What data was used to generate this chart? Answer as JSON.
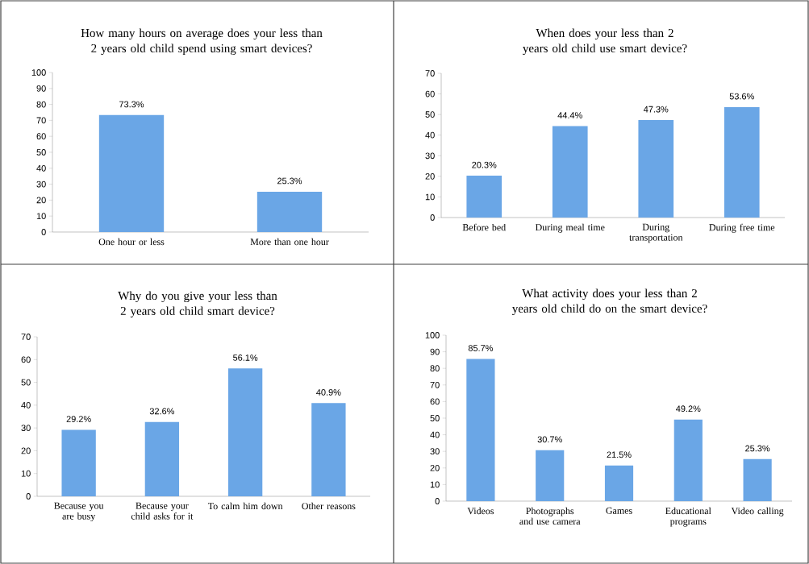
{
  "chart_data": [
    {
      "type": "bar",
      "title": "How many hours on average does your less than 2 years old child spend using smart devices?",
      "categories": [
        "One hour or less",
        "More than one hour"
      ],
      "values": [
        73.3,
        25.3
      ],
      "value_labels": [
        "73.3%",
        "25.3%"
      ],
      "color": "#6aa6e6",
      "ylim": [
        0,
        100
      ],
      "yticks": [
        0,
        10,
        20,
        30,
        40,
        50,
        60,
        70,
        80,
        90,
        100
      ]
    },
    {
      "type": "bar",
      "title": "When does your less than 2 years old child use smart device?",
      "categories": [
        "Before bed",
        "During meal time",
        "During transportation",
        "During free time"
      ],
      "values": [
        20.3,
        44.4,
        47.3,
        53.6
      ],
      "value_labels": [
        "20.3%",
        "44.4%",
        "47.3%",
        "53.6%"
      ],
      "color": "#6aa6e6",
      "ylim": [
        0,
        70
      ],
      "yticks": [
        0,
        10,
        20,
        30,
        40,
        50,
        60,
        70
      ]
    },
    {
      "type": "bar",
      "title": "Why do you give your less than 2 years old child smart device?",
      "categories": [
        "Because you are busy",
        "Because your child asks for it",
        "To calm him down",
        "Other reasons"
      ],
      "values": [
        29.2,
        32.6,
        56.1,
        40.9
      ],
      "value_labels": [
        "29.2%",
        "32.6%",
        "56.1%",
        "40.9%"
      ],
      "color": "#6aa6e6",
      "ylim": [
        0,
        70
      ],
      "yticks": [
        0,
        10,
        20,
        30,
        40,
        50,
        60,
        70
      ]
    },
    {
      "type": "bar",
      "title": "What activity does your less than 2 years old child do on the smart device?",
      "categories": [
        "Videos",
        "Photographs and use camera",
        "Games",
        "Educational programs",
        "Video calling"
      ],
      "values": [
        85.7,
        30.7,
        21.5,
        49.2,
        25.3
      ],
      "value_labels": [
        "85.7%",
        "30.7%",
        "21.5%",
        "49.2%",
        "25.3%"
      ],
      "color": "#6aa6e6",
      "ylim": [
        0,
        100
      ],
      "yticks": [
        0,
        10,
        20,
        30,
        40,
        50,
        60,
        70,
        80,
        90,
        100
      ]
    }
  ]
}
